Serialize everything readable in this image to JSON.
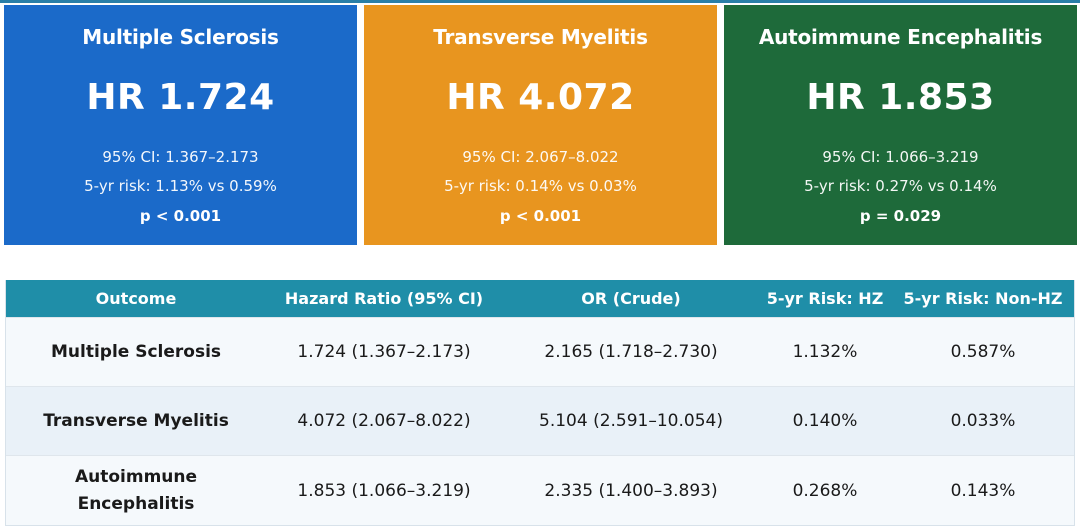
{
  "colors": {
    "ms_card": "#1b6ac9",
    "tm_card": "#e8951f",
    "ae_card": "#1e6a3a",
    "table_header": "#1f8ea8"
  },
  "cards": [
    {
      "title": "Multiple Sclerosis",
      "hr": "HR 1.724",
      "ci": "95% CI: 1.367–2.173",
      "risk": "5-yr risk: 1.13% vs 0.59%",
      "p": "p < 0.001"
    },
    {
      "title": "Transverse Myelitis",
      "hr": "HR 4.072",
      "ci": "95% CI: 2.067–8.022",
      "risk": "5-yr risk: 0.14% vs 0.03%",
      "p": "p < 0.001"
    },
    {
      "title": "Autoimmune Encephalitis",
      "hr": "HR 1.853",
      "ci": "95% CI: 1.066–3.219",
      "risk": "5-yr risk: 0.27% vs 0.14%",
      "p": "p = 0.029"
    }
  ],
  "table": {
    "headers": [
      "Outcome",
      "Hazard Ratio (95% CI)",
      "OR (Crude)",
      "5-yr Risk: HZ",
      "5-yr Risk: Non-HZ"
    ],
    "rows": [
      [
        "Multiple Sclerosis",
        "1.724 (1.367–2.173)",
        "2.165 (1.718–2.730)",
        "1.132%",
        "0.587%"
      ],
      [
        "Transverse Myelitis",
        "4.072 (2.067–8.022)",
        "5.104 (2.591–10.054)",
        "0.140%",
        "0.033%"
      ],
      [
        "Autoimmune Encephalitis",
        "1.853 (1.066–3.219)",
        "2.335 (1.400–3.893)",
        "0.268%",
        "0.143%"
      ]
    ]
  }
}
